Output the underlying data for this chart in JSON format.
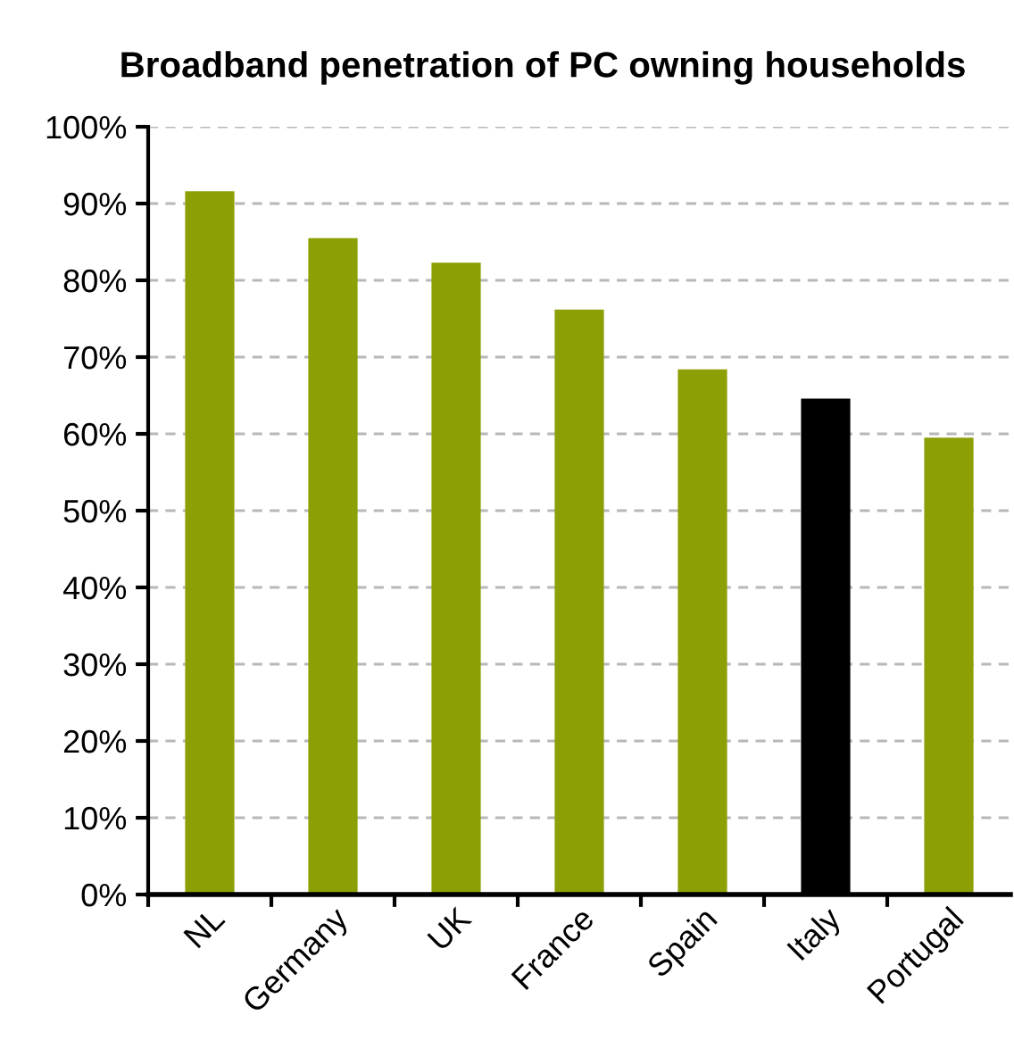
{
  "chart_data": {
    "type": "bar",
    "title": "Broadband penetration of PC owning households",
    "categories": [
      "NL",
      "Germany",
      "UK",
      "France",
      "Spain",
      "Italy",
      "Portugal"
    ],
    "values": [
      91.6,
      85.5,
      82.3,
      76.2,
      68.4,
      64.6,
      59.5
    ],
    "colors": [
      "#8c9f05",
      "#8c9f05",
      "#8c9f05",
      "#8c9f05",
      "#8c9f05",
      "#000000",
      "#8c9f05"
    ],
    "ylim": [
      0,
      100
    ],
    "yticks": [
      {
        "value": 0,
        "label": "0%"
      },
      {
        "value": 10,
        "label": "10%"
      },
      {
        "value": 20,
        "label": "20%"
      },
      {
        "value": 30,
        "label": "30%"
      },
      {
        "value": 40,
        "label": "40%"
      },
      {
        "value": 50,
        "label": "50%"
      },
      {
        "value": 60,
        "label": "60%"
      },
      {
        "value": 70,
        "label": "70%"
      },
      {
        "value": 80,
        "label": "80%"
      },
      {
        "value": 90,
        "label": "90%"
      },
      {
        "value": 100,
        "label": "100%"
      }
    ],
    "grid": "y"
  }
}
